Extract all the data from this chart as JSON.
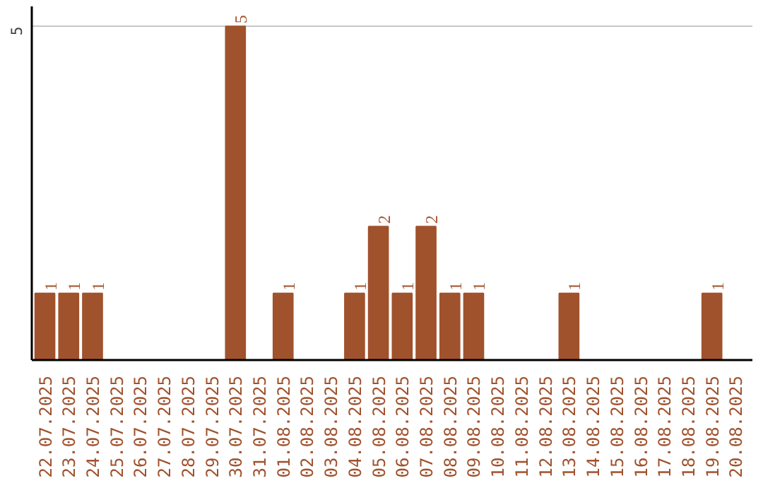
{
  "chart_data": {
    "type": "bar",
    "categories": [
      "22.07.2025",
      "23.07.2025",
      "24.07.2025",
      "25.07.2025",
      "26.07.2025",
      "27.07.2025",
      "28.07.2025",
      "29.07.2025",
      "30.07.2025",
      "31.07.2025",
      "01.08.2025",
      "02.08.2025",
      "03.08.2025",
      "04.08.2025",
      "05.08.2025",
      "06.08.2025",
      "07.08.2025",
      "08.08.2025",
      "09.08.2025",
      "10.08.2025",
      "11.08.2025",
      "12.08.2025",
      "13.08.2025",
      "14.08.2025",
      "15.08.2025",
      "16.08.2025",
      "17.08.2025",
      "18.08.2025",
      "19.08.2025",
      "20.08.2025"
    ],
    "values": [
      1,
      1,
      1,
      0,
      0,
      0,
      0,
      0,
      5,
      0,
      1,
      0,
      0,
      1,
      2,
      1,
      2,
      1,
      1,
      0,
      0,
      0,
      1,
      0,
      0,
      0,
      0,
      0,
      1,
      0
    ],
    "value_labels": [
      "1",
      "1",
      "1",
      null,
      null,
      null,
      null,
      null,
      "5",
      null,
      "1",
      null,
      null,
      "1",
      "2",
      "1",
      "2",
      "1",
      "1",
      null,
      null,
      null,
      "1",
      null,
      null,
      null,
      null,
      null,
      "1",
      null
    ],
    "color": "#a0522d",
    "ylim": [
      0,
      5.3
    ],
    "yticks": [
      5
    ],
    "grid": "y"
  }
}
